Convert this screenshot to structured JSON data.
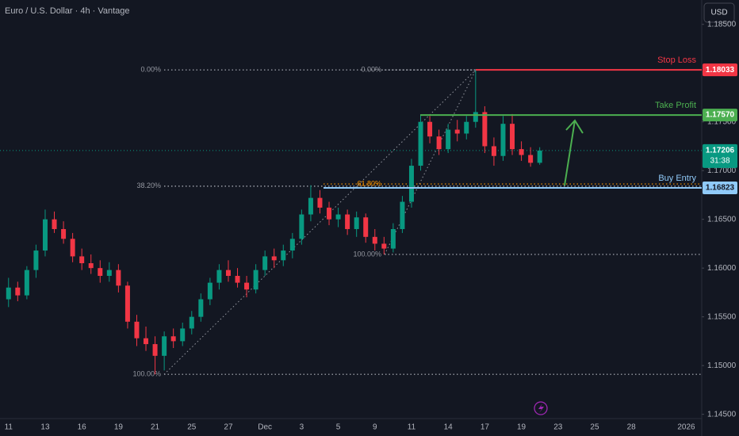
{
  "chart_data": {
    "type": "candlestick",
    "title": "Euro / U.S. Dollar · 4h · Vantage",
    "currency": "USD",
    "up_color": "#089981",
    "down_color": "#f23645",
    "categories": [
      "11",
      null,
      null,
      null,
      "13",
      null,
      null,
      null,
      "16",
      null,
      null,
      null,
      "19",
      null,
      null,
      null,
      "21",
      null,
      null,
      null,
      "25",
      null,
      null,
      null,
      "27",
      null,
      null,
      null,
      "Dec",
      null,
      null,
      null,
      "3",
      null,
      null,
      null,
      "5",
      null,
      null,
      null,
      "9",
      null,
      null,
      null,
      "11",
      null,
      null,
      null,
      "14",
      null,
      null,
      null,
      "17",
      null,
      null,
      null,
      "19",
      null,
      null,
      null,
      "23",
      null,
      null,
      null,
      "25",
      null,
      null,
      null,
      "28",
      null,
      null,
      null,
      null,
      null,
      "2026",
      null
    ],
    "open": [
      1.1568,
      1.158,
      1.1572,
      1.1598,
      1.1618,
      1.165,
      1.164,
      1.163,
      1.1612,
      1.1605,
      1.16,
      1.1592,
      1.1598,
      1.1582,
      1.1545,
      1.1528,
      1.1522,
      1.151,
      1.153,
      1.1525,
      1.1538,
      1.155,
      1.1568,
      1.1585,
      1.1598,
      1.1592,
      1.1585,
      1.1578,
      1.1598,
      1.1612,
      1.1608,
      1.1618,
      1.163,
      1.1655,
      1.1672,
      1.1662,
      1.165,
      1.1655,
      1.164,
      1.1652,
      1.1632,
      1.1625,
      1.162,
      1.164,
      1.1668,
      1.1705,
      1.175,
      1.1735,
      1.1722,
      1.1742,
      1.1738,
      1.175,
      1.176,
      1.1725,
      1.1715,
      1.1748,
      1.1722,
      1.1716,
      1.1708,
      null,
      null,
      null,
      null,
      null,
      null,
      null,
      null,
      null,
      null,
      null,
      null,
      null,
      null,
      null,
      null,
      null
    ],
    "high": [
      1.159,
      1.1586,
      1.1602,
      1.1624,
      1.166,
      1.1658,
      1.1648,
      1.1636,
      1.162,
      1.1614,
      1.1608,
      1.1606,
      1.1604,
      1.1586,
      1.1552,
      1.154,
      1.153,
      1.1535,
      1.1538,
      1.1544,
      1.1556,
      1.1574,
      1.159,
      1.1604,
      1.1608,
      1.16,
      1.1592,
      1.1604,
      1.1618,
      1.162,
      1.1624,
      1.1636,
      1.166,
      1.1685,
      1.168,
      1.1668,
      1.1662,
      1.166,
      1.1658,
      1.1656,
      1.164,
      1.1632,
      1.1646,
      1.1674,
      1.1712,
      1.1757,
      1.1756,
      1.1742,
      1.1748,
      1.1752,
      1.1756,
      1.18033,
      1.1766,
      1.1734,
      1.1756,
      1.1758,
      1.173,
      1.1724,
      1.1724,
      null,
      null,
      null,
      null,
      null,
      null,
      null,
      null,
      null,
      null,
      null,
      null,
      null,
      null,
      null,
      null,
      null
    ],
    "low": [
      1.156,
      1.1566,
      1.1568,
      1.159,
      1.1612,
      1.1636,
      1.1625,
      1.1606,
      1.1598,
      1.1594,
      1.1585,
      1.1586,
      1.1575,
      1.1538,
      1.152,
      1.1515,
      1.1491,
      1.1495,
      1.1518,
      1.152,
      1.1532,
      1.1545,
      1.1562,
      1.1578,
      1.1586,
      1.158,
      1.157,
      1.1574,
      1.1592,
      1.16,
      1.1602,
      1.161,
      1.1624,
      1.1648,
      1.1656,
      1.1644,
      1.1642,
      1.1634,
      1.1632,
      1.1626,
      1.1618,
      1.1614,
      1.1616,
      1.1636,
      1.1662,
      1.17,
      1.1728,
      1.1716,
      1.1718,
      1.173,
      1.1732,
      1.1744,
      1.1718,
      1.1705,
      1.171,
      1.1716,
      1.171,
      1.1704,
      1.1706,
      null,
      null,
      null,
      null,
      null,
      null,
      null,
      null,
      null,
      null,
      null,
      null,
      null,
      null,
      null,
      null,
      null
    ],
    "close": [
      1.158,
      1.1572,
      1.1598,
      1.1618,
      1.165,
      1.164,
      1.163,
      1.1612,
      1.1605,
      1.16,
      1.1592,
      1.1598,
      1.1582,
      1.1545,
      1.1528,
      1.1522,
      1.151,
      1.153,
      1.1525,
      1.1538,
      1.155,
      1.1568,
      1.1585,
      1.1598,
      1.1592,
      1.1585,
      1.1578,
      1.1598,
      1.1612,
      1.1608,
      1.1618,
      1.163,
      1.1655,
      1.1672,
      1.1662,
      1.165,
      1.1655,
      1.164,
      1.1652,
      1.1632,
      1.1625,
      1.162,
      1.164,
      1.1668,
      1.1705,
      1.175,
      1.1735,
      1.1722,
      1.1742,
      1.1738,
      1.175,
      1.176,
      1.1725,
      1.1715,
      1.1748,
      1.1722,
      1.1716,
      1.1708,
      1.17206,
      null,
      null,
      null,
      null,
      null,
      null,
      null,
      null,
      null,
      null,
      null,
      null,
      null,
      null,
      null,
      null,
      null
    ],
    "ylim": [
      1.1444,
      1.1875
    ],
    "yticks": [
      {
        "value": 1.185,
        "label": "1.18500"
      },
      {
        "value": 1.175,
        "label": "1.17500"
      },
      {
        "value": 1.17,
        "label": "1.17000"
      },
      {
        "value": 1.165,
        "label": "1.16500"
      },
      {
        "value": 1.16,
        "label": "1.16000"
      },
      {
        "value": 1.155,
        "label": "1.15500"
      },
      {
        "value": 1.15,
        "label": "1.15000"
      },
      {
        "value": 1.145,
        "label": "1.14500"
      }
    ],
    "price_lines": [
      {
        "name": "Stop Loss",
        "value": 1.18033,
        "value_label": "1.18033",
        "color": "#f23645"
      },
      {
        "name": "Take Profit",
        "value": 1.1757,
        "value_label": "1.17570",
        "color": "#4caf50"
      },
      {
        "name": "Buy Entry",
        "value": 1.16823,
        "value_label": "1.16823",
        "color": "#90caf9"
      }
    ],
    "last_price": {
      "value": 1.17206,
      "value_label": "1.17206",
      "countdown": "31:38",
      "color": "#089981"
    },
    "fib_left": {
      "levels": [
        {
          "label": "0.00%",
          "value": 1.18033
        },
        {
          "label": "38.20%",
          "value": 1.1684
        },
        {
          "label": "100.00%",
          "value": 1.1491
        }
      ]
    },
    "fib_right": {
      "levels": [
        {
          "label": "0.00%",
          "value": 1.18033
        },
        {
          "label": "61.80%",
          "value": 1.16863
        },
        {
          "label": "100.00%",
          "value": 1.1614
        }
      ]
    }
  }
}
